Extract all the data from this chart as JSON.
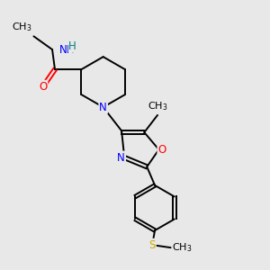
{
  "background_color": "#e8e8e8",
  "atom_colors": {
    "C": "#000000",
    "N": "#0000ff",
    "O": "#ff0000",
    "S": "#ccaa00",
    "H": "#008080"
  },
  "figsize": [
    3.0,
    3.0
  ],
  "dpi": 100,
  "xlim": [
    0,
    10
  ],
  "ylim": [
    0,
    10
  ],
  "lw": 1.4,
  "fs": 8.5
}
